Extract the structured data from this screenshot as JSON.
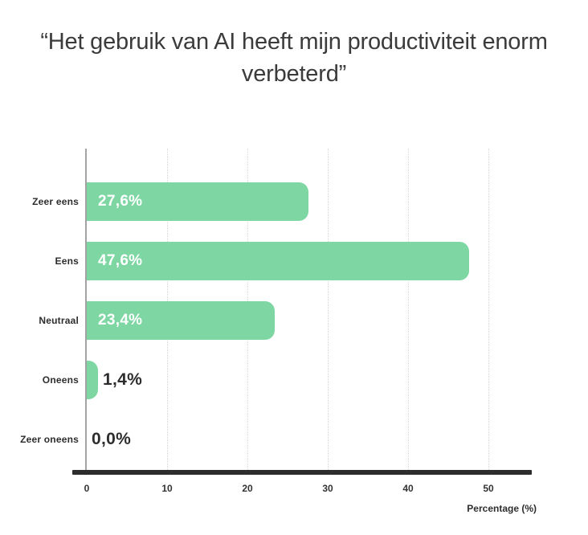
{
  "title": "“Het gebruik van AI heeft mijn productiviteit enorm verbeterd”",
  "chart_data": {
    "type": "bar",
    "orientation": "horizontal",
    "title": "“Het gebruik van AI heeft mijn productiviteit enorm verbeterd”",
    "categories": [
      "Zeer eens",
      "Eens",
      "Neutraal",
      "Oneens",
      "Zeer oneens"
    ],
    "values": [
      27.6,
      47.6,
      23.4,
      1.4,
      0.0
    ],
    "value_labels": [
      "27,6%",
      "47,6%",
      "23,4%",
      "1,4%",
      "0,0%"
    ],
    "xlabel": "Percentage (%)",
    "ylabel": "",
    "xticks": [
      0,
      10,
      20,
      30,
      40,
      50
    ],
    "xlim": [
      0,
      55
    ],
    "grid": "vertical-dotted",
    "legend": "none",
    "colors": {
      "bar": "#7ed7a2",
      "value_inside": "#ffffff",
      "value_outside": "#2d2d2d",
      "axis": "#2d2d2d",
      "y_axis_line": "#a3a3a3",
      "gridline": "#d9d9d9",
      "title": "#3b3b3b"
    }
  }
}
